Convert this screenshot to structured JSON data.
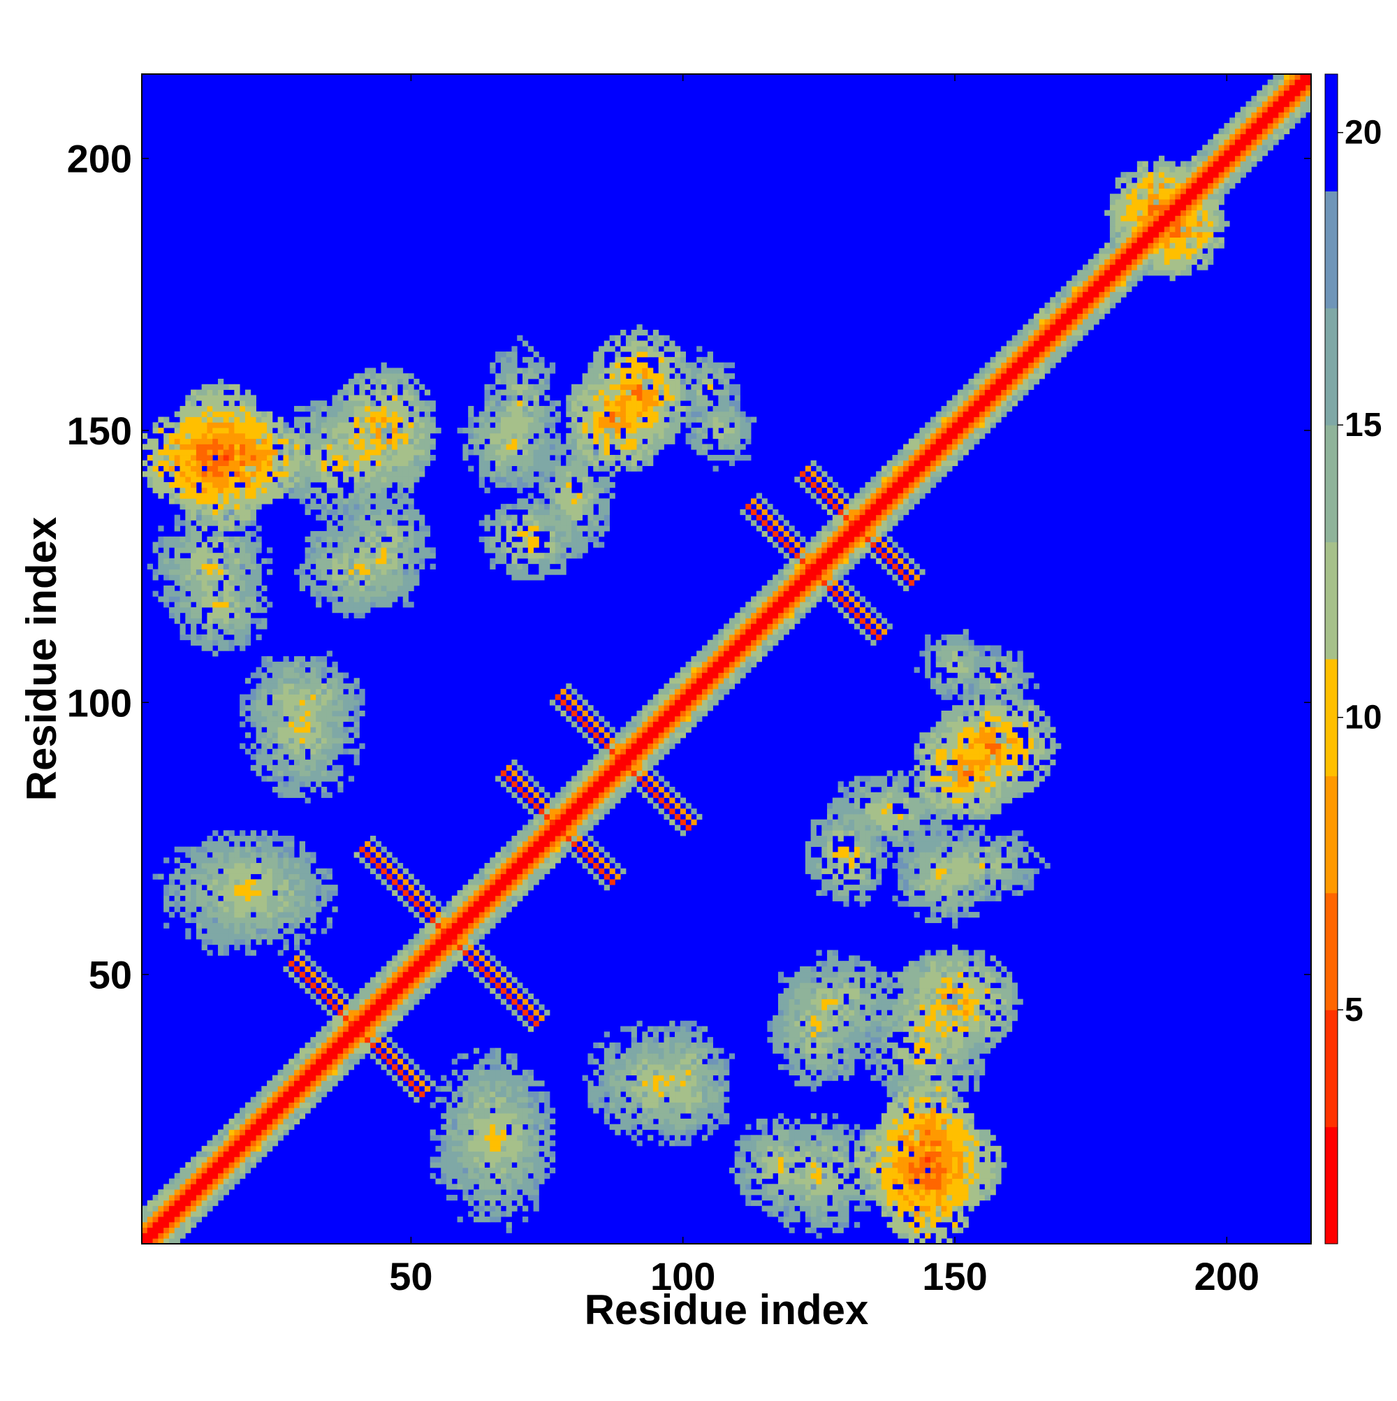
{
  "chart_data": {
    "type": "heatmap",
    "title": "",
    "xlabel": "Residue index",
    "ylabel": "Residue index",
    "xlim": [
      1,
      215
    ],
    "ylim": [
      1,
      215
    ],
    "xticks": [
      50,
      100,
      150,
      200
    ],
    "yticks": [
      50,
      100,
      150,
      200
    ],
    "colorbar": {
      "range": [
        1,
        21
      ],
      "ticks": [
        5,
        10,
        15,
        20
      ],
      "colors": [
        "#ff0000",
        "#ff3300",
        "#ff6600",
        "#ff9900",
        "#ffbf00",
        "#a6c08a",
        "#8fb39a",
        "#7fa8a6",
        "#6f95b8",
        "#0000ff"
      ]
    },
    "background_value": 21,
    "features": [
      {
        "kind": "diagonal",
        "from": 1,
        "to": 215
      },
      {
        "kind": "antidiagonal",
        "center": [
          40,
          40
        ],
        "length": 12
      },
      {
        "kind": "antidiagonal",
        "center": [
          57,
          57
        ],
        "length": 16
      },
      {
        "kind": "antidiagonal",
        "center": [
          77,
          77
        ],
        "length": 10
      },
      {
        "kind": "antidiagonal",
        "center": [
          89,
          89
        ],
        "length": 12
      },
      {
        "kind": "antidiagonal",
        "center": [
          124,
          124
        ],
        "length": 12
      },
      {
        "kind": "antidiagonal",
        "center": [
          132,
          132
        ],
        "length": 10
      },
      {
        "kind": "patch",
        "center": [
          15,
          145
        ],
        "size": [
          16,
          10
        ],
        "min": 4
      },
      {
        "kind": "patch",
        "center": [
          38,
          145
        ],
        "size": [
          14,
          12
        ],
        "min": 9
      },
      {
        "kind": "patch",
        "center": [
          68,
          148
        ],
        "size": [
          10,
          10
        ],
        "min": 10
      },
      {
        "kind": "patch",
        "center": [
          88,
          152
        ],
        "size": [
          10,
          10
        ],
        "min": 6
      },
      {
        "kind": "patch",
        "center": [
          107,
          150
        ],
        "size": [
          8,
          8
        ],
        "min": 11
      },
      {
        "kind": "patch",
        "center": [
          13,
          125
        ],
        "size": [
          12,
          12
        ],
        "min": 10
      },
      {
        "kind": "patch",
        "center": [
          40,
          125
        ],
        "size": [
          12,
          10
        ],
        "min": 10
      },
      {
        "kind": "patch",
        "center": [
          72,
          130
        ],
        "size": [
          10,
          8
        ],
        "min": 9
      },
      {
        "kind": "patch",
        "center": [
          30,
          100
        ],
        "size": [
          12,
          10
        ],
        "min": 10
      },
      {
        "kind": "patch",
        "center": [
          157,
          92
        ],
        "size": [
          12,
          10
        ],
        "min": 6
      },
      {
        "kind": "patch",
        "center": [
          153,
          70
        ],
        "size": [
          14,
          8
        ],
        "min": 10
      },
      {
        "kind": "patch",
        "center": [
          158,
          105
        ],
        "size": [
          8,
          6
        ],
        "min": 11
      },
      {
        "kind": "patch",
        "center": [
          138,
          80
        ],
        "size": [
          12,
          8
        ],
        "min": 10
      },
      {
        "kind": "patch",
        "center": [
          150,
          45
        ],
        "size": [
          12,
          10
        ],
        "min": 7
      },
      {
        "kind": "patch",
        "center": [
          128,
          45
        ],
        "size": [
          12,
          10
        ],
        "min": 10
      },
      {
        "kind": "patch",
        "center": [
          145,
          15
        ],
        "size": [
          14,
          10
        ],
        "min": 5
      },
      {
        "kind": "patch",
        "center": [
          118,
          15
        ],
        "size": [
          10,
          10
        ],
        "min": 10
      },
      {
        "kind": "patch",
        "center": [
          95,
          30
        ],
        "size": [
          14,
          12
        ],
        "min": 10
      },
      {
        "kind": "patch",
        "center": [
          66,
          20
        ],
        "size": [
          12,
          12
        ],
        "min": 10
      },
      {
        "kind": "patch",
        "center": [
          20,
          65
        ],
        "size": [
          18,
          12
        ],
        "min": 10
      },
      {
        "kind": "patch",
        "center": [
          188,
          190
        ],
        "size": [
          10,
          10
        ],
        "min": 5
      }
    ]
  }
}
